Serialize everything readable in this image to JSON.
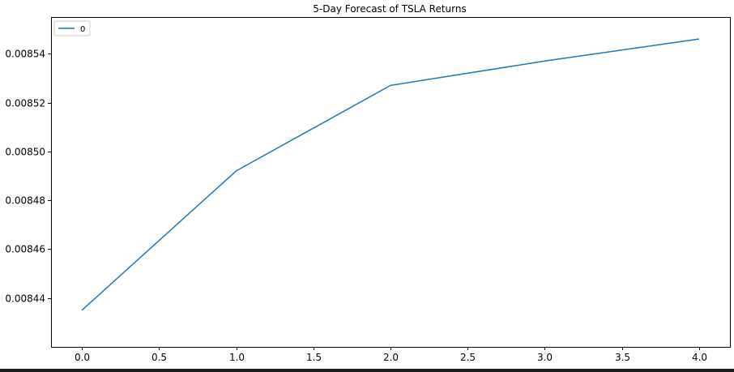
{
  "chart_data": {
    "type": "line",
    "title": "5-Day Forecast of TSLA Returns",
    "xlabel": "",
    "ylabel": "",
    "xlim": [
      -0.2,
      4.2
    ],
    "ylim": [
      0.00842,
      0.008555
    ],
    "x_ticks": [
      0.0,
      0.5,
      1.0,
      1.5,
      2.0,
      2.5,
      3.0,
      3.5,
      4.0
    ],
    "x_tick_labels": [
      "0.0",
      "0.5",
      "1.0",
      "1.5",
      "2.0",
      "2.5",
      "3.0",
      "3.5",
      "4.0"
    ],
    "y_ticks": [
      0.00844,
      0.00846,
      0.00848,
      0.0085,
      0.00852,
      0.00854
    ],
    "y_tick_labels": [
      "0.00844",
      "0.00846",
      "0.00848",
      "0.00850",
      "0.00852",
      "0.00854"
    ],
    "grid": false,
    "legend_position": "top-left",
    "series": [
      {
        "name": "0",
        "color": "#1f77b4",
        "x": [
          0,
          1,
          2,
          3,
          4
        ],
        "values": [
          0.008435,
          0.008492,
          0.008527,
          0.008537,
          0.008546
        ]
      }
    ]
  }
}
